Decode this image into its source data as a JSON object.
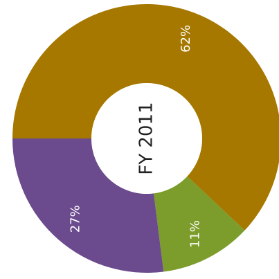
{
  "chart_data": {
    "type": "donut",
    "title": "FY 2011",
    "categories": [
      null,
      null,
      null
    ],
    "series": [
      {
        "values": [
          62,
          11,
          27
        ],
        "value_labels": [
          "62%",
          "11%",
          "27%"
        ],
        "colors": [
          "#a67800",
          "#7c9d2c",
          "#6b4b8d"
        ]
      }
    ]
  }
}
